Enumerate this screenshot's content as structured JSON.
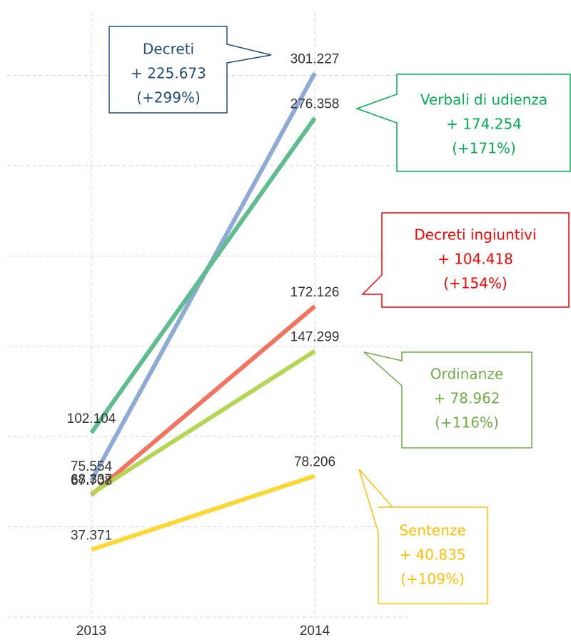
{
  "chart_data": {
    "type": "line",
    "categories": [
      "2013",
      "2014"
    ],
    "series": [
      {
        "name": "Decreti",
        "color": "#8eaad6",
        "values": [
          75.554,
          301.227
        ]
      },
      {
        "name": "Verbali di udienza",
        "color": "#5dbd8c",
        "values": [
          102.104,
          276.358
        ]
      },
      {
        "name": "Decreti ingiuntivi",
        "color": "#f4735f",
        "values": [
          67.708,
          172.126
        ]
      },
      {
        "name": "Ordinanze",
        "color": "#b5d652",
        "values": [
          68.337,
          147.299
        ]
      },
      {
        "name": "Sentenze",
        "color": "#fdd835",
        "values": [
          37.371,
          78.206
        ]
      }
    ],
    "ylim": [
      0,
      335
    ],
    "yticks": [
      0,
      50,
      100,
      150,
      200,
      250,
      300
    ],
    "grid": true,
    "annotations": [
      {
        "lines": [
          "Decreti",
          "+ 225.673",
          "(+299%)"
        ],
        "color": "#1f4e79"
      },
      {
        "lines": [
          "Verbali di udienza",
          "+ 174.254",
          "(+171%)"
        ],
        "color": "#00b050"
      },
      {
        "lines": [
          "Decreti ingiuntivi",
          "+ 104.418",
          "(+154%)"
        ],
        "color": "#ff0000"
      },
      {
        "lines": [
          "Ordinanze",
          "+ 78.962",
          "(+116%)"
        ],
        "color": "#70ad47"
      },
      {
        "lines": [
          "Sentenze",
          "+ 40.835",
          "(+109%)"
        ],
        "color": "#ffc000"
      }
    ]
  }
}
